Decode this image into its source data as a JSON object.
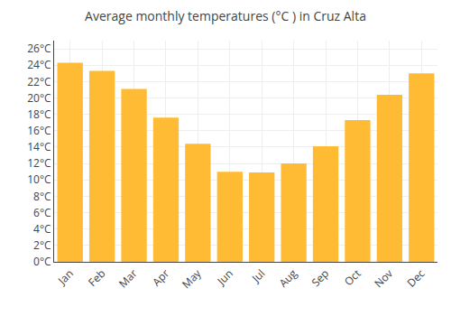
{
  "chart_data": {
    "type": "bar",
    "title": "Average monthly temperatures (°C ) in Cruz Alta",
    "categories": [
      "Jan",
      "Feb",
      "Mar",
      "Apr",
      "May",
      "Jun",
      "Jul",
      "Aug",
      "Sep",
      "Oct",
      "Nov",
      "Dec"
    ],
    "values": [
      24.3,
      23.3,
      21.1,
      17.6,
      14.4,
      11.0,
      10.9,
      12.0,
      14.1,
      17.3,
      20.4,
      23.0
    ],
    "color": "#FFBB33",
    "ylim": [
      0,
      27
    ],
    "yticks": [
      {
        "value": 0,
        "label": "0°C"
      },
      {
        "value": 2,
        "label": "2°C"
      },
      {
        "value": 4,
        "label": "4°C"
      },
      {
        "value": 6,
        "label": "6°C"
      },
      {
        "value": 8,
        "label": "8°C"
      },
      {
        "value": 10,
        "label": "10°C"
      },
      {
        "value": 12,
        "label": "12°C"
      },
      {
        "value": 14,
        "label": "14°C"
      },
      {
        "value": 16,
        "label": "16°C"
      },
      {
        "value": 18,
        "label": "18°C"
      },
      {
        "value": 20,
        "label": "20°C"
      },
      {
        "value": 22,
        "label": "22°C"
      },
      {
        "value": 24,
        "label": "24°C"
      },
      {
        "value": 26,
        "label": "26°C"
      }
    ],
    "grid": true
  }
}
